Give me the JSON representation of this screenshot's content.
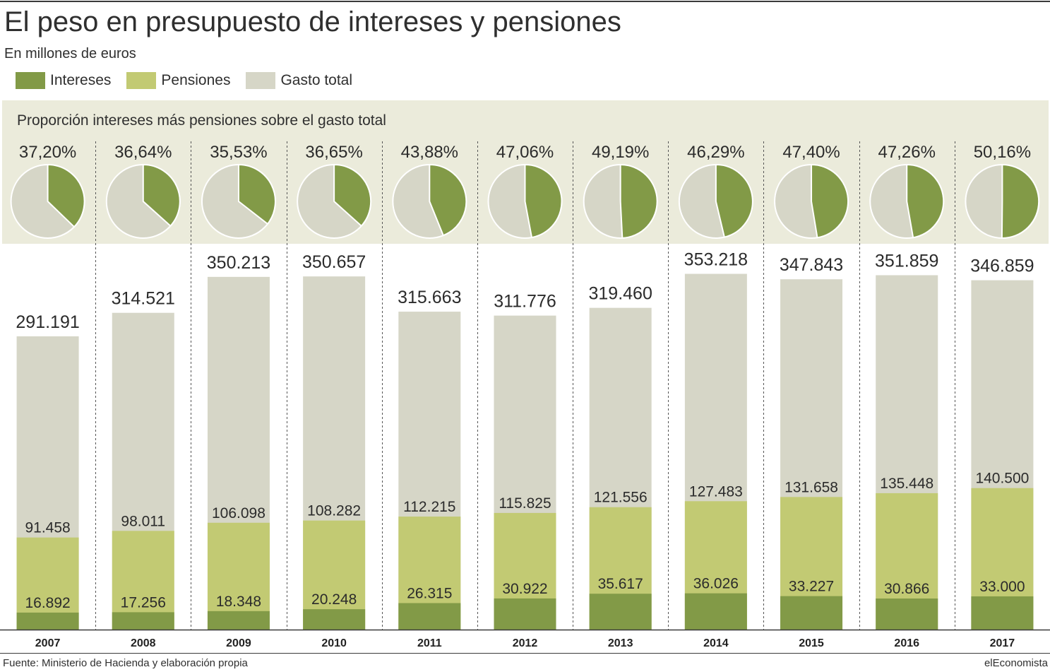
{
  "header": {
    "title": "El peso en presupuesto de intereses y pensiones",
    "subtitle": "En millones de euros"
  },
  "legend": [
    {
      "label": "Intereses",
      "color": "#829a47"
    },
    {
      "label": "Pensiones",
      "color": "#c2ca73"
    },
    {
      "label": "Gasto total",
      "color": "#d6d6c7"
    }
  ],
  "proportion": {
    "title": "Proporción intereses más pensiones sobre el gasto total",
    "band_color": "#ebebdb"
  },
  "colors": {
    "intereses": "#829a47",
    "pensiones": "#c2ca73",
    "gasto_total": "#d6d6c7",
    "divider": "#555555"
  },
  "footer": {
    "source": "Fuente: Ministerio de Hacienda y elaboración propia",
    "brand": "elEconomista"
  },
  "chart_data": [
    {
      "type": "pie",
      "title": "Proporción intereses más pensiones sobre el gasto total",
      "categories": [
        "2007",
        "2008",
        "2009",
        "2010",
        "2011",
        "2012",
        "2013",
        "2014",
        "2015",
        "2016",
        "2017"
      ],
      "series": [
        {
          "values": [
            37.2,
            36.64,
            35.53,
            36.65,
            43.88,
            47.06,
            49.19,
            46.29,
            47.4,
            47.26,
            50.16
          ]
        }
      ],
      "labels": [
        "37,20%",
        "36,64%",
        "35,53%",
        "36,65%",
        "43,88%",
        "47,06%",
        "49,19%",
        "46,29%",
        "47,40%",
        "47,26%",
        "50,16%"
      ]
    },
    {
      "type": "bar",
      "categories": [
        "2007",
        "2008",
        "2009",
        "2010",
        "2011",
        "2012",
        "2013",
        "2014",
        "2015",
        "2016",
        "2017"
      ],
      "ylim": [
        0,
        355000
      ],
      "series": [
        {
          "name": "Intereses",
          "values": [
            16892,
            17256,
            18348,
            20248,
            26315,
            30922,
            35617,
            36026,
            33227,
            30866,
            33000
          ],
          "labels": [
            "16.892",
            "17.256",
            "18.348",
            "20.248",
            "26.315",
            "30.922",
            "35.617",
            "36.026",
            "33.227",
            "30.866",
            "33.000"
          ]
        },
        {
          "name": "Pensiones",
          "values": [
            91458,
            98011,
            106098,
            108282,
            112215,
            115825,
            121556,
            127483,
            131658,
            135448,
            140500
          ],
          "labels": [
            "91.458",
            "98.011",
            "106.098",
            "108.282",
            "112.215",
            "115.825",
            "121.556",
            "127.483",
            "131.658",
            "135.448",
            "140.500"
          ]
        },
        {
          "name": "Gasto total",
          "values": [
            291191,
            314521,
            350213,
            350657,
            315663,
            311776,
            319460,
            353218,
            347843,
            351859,
            346859
          ],
          "labels": [
            "291.191",
            "314.521",
            "350.213",
            "350.657",
            "315.663",
            "311.776",
            "319.460",
            "353.218",
            "347.843",
            "351.859",
            "346.859"
          ]
        }
      ]
    }
  ]
}
